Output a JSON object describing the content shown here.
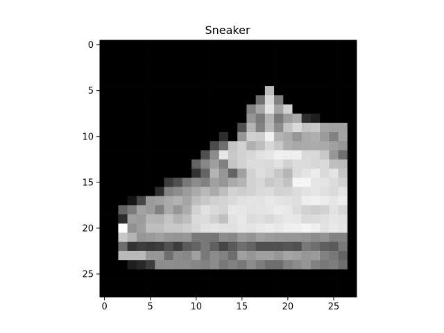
{
  "chart_data": {
    "type": "heatmap",
    "title": "Sneaker",
    "xlabel": "",
    "ylabel": "",
    "colormap": "gray",
    "value_range": [
      0,
      255
    ],
    "shape": [
      28,
      28
    ],
    "x_ticks": [
      0,
      5,
      10,
      15,
      20,
      25
    ],
    "y_ticks": [
      0,
      5,
      10,
      15,
      20,
      25
    ],
    "xlim": [
      -0.5,
      27.5
    ],
    "ylim": [
      27.5,
      -0.5
    ],
    "pixels": [
      [
        0,
        0,
        0,
        0,
        0,
        0,
        0,
        0,
        0,
        0,
        0,
        0,
        0,
        0,
        0,
        0,
        0,
        0,
        0,
        0,
        0,
        0,
        0,
        0,
        0,
        0,
        0,
        0
      ],
      [
        0,
        0,
        0,
        0,
        0,
        0,
        0,
        0,
        0,
        0,
        0,
        0,
        0,
        0,
        0,
        0,
        0,
        0,
        0,
        0,
        0,
        0,
        0,
        0,
        0,
        0,
        0,
        0
      ],
      [
        0,
        0,
        0,
        0,
        0,
        0,
        0,
        0,
        0,
        0,
        0,
        0,
        0,
        0,
        0,
        0,
        0,
        0,
        0,
        0,
        0,
        0,
        0,
        0,
        0,
        0,
        0,
        0
      ],
      [
        0,
        0,
        0,
        0,
        0,
        0,
        0,
        0,
        0,
        0,
        0,
        0,
        0,
        0,
        0,
        0,
        0,
        0,
        0,
        0,
        0,
        0,
        0,
        0,
        0,
        0,
        0,
        0
      ],
      [
        0,
        0,
        0,
        0,
        0,
        0,
        0,
        0,
        0,
        0,
        0,
        0,
        0,
        0,
        0,
        0,
        0,
        0,
        0,
        0,
        0,
        0,
        0,
        0,
        0,
        0,
        0,
        0
      ],
      [
        0,
        0,
        0,
        0,
        0,
        0,
        0,
        0,
        0,
        0,
        0,
        0,
        0,
        0,
        0,
        0,
        0,
        0,
        186,
        0,
        0,
        0,
        0,
        0,
        0,
        0,
        0,
        0
      ],
      [
        0,
        0,
        0,
        0,
        0,
        0,
        0,
        0,
        0,
        0,
        0,
        0,
        0,
        0,
        0,
        0,
        0,
        111,
        216,
        128,
        0,
        0,
        0,
        0,
        0,
        0,
        0,
        0
      ],
      [
        0,
        0,
        0,
        0,
        0,
        0,
        0,
        0,
        0,
        0,
        0,
        0,
        0,
        0,
        0,
        0,
        130,
        165,
        228,
        165,
        209,
        0,
        0,
        0,
        0,
        0,
        0,
        0
      ],
      [
        0,
        0,
        0,
        0,
        0,
        0,
        0,
        0,
        0,
        0,
        0,
        0,
        0,
        0,
        0,
        0,
        150,
        123,
        180,
        122,
        156,
        170,
        45,
        30,
        0,
        0,
        0,
        0
      ],
      [
        0,
        0,
        0,
        0,
        0,
        0,
        0,
        0,
        0,
        0,
        0,
        0,
        0,
        0,
        0,
        80,
        180,
        130,
        186,
        140,
        196,
        218,
        196,
        200,
        165,
        162,
        162,
        0
      ],
      [
        0,
        0,
        0,
        0,
        0,
        0,
        0,
        0,
        0,
        0,
        0,
        0,
        0,
        45,
        0,
        150,
        208,
        204,
        240,
        180,
        170,
        150,
        170,
        175,
        155,
        130,
        164,
        0
      ],
      [
        0,
        0,
        0,
        0,
        0,
        0,
        0,
        0,
        0,
        0,
        0,
        0,
        75,
        110,
        196,
        210,
        176,
        190,
        215,
        200,
        175,
        168,
        170,
        172,
        170,
        160,
        150,
        0
      ],
      [
        0,
        0,
        0,
        0,
        0,
        0,
        0,
        0,
        0,
        0,
        0,
        80,
        140,
        230,
        200,
        210,
        216,
        225,
        230,
        240,
        238,
        240,
        218,
        216,
        200,
        150,
        110,
        0
      ],
      [
        0,
        0,
        0,
        0,
        0,
        0,
        0,
        0,
        0,
        0,
        100,
        135,
        158,
        128,
        198,
        210,
        220,
        220,
        218,
        225,
        208,
        220,
        220,
        215,
        218,
        190,
        188,
        0
      ],
      [
        0,
        0,
        0,
        0,
        0,
        0,
        0,
        0,
        0,
        0,
        50,
        100,
        180,
        150,
        100,
        160,
        210,
        222,
        215,
        200,
        182,
        220,
        228,
        236,
        218,
        228,
        198,
        0
      ],
      [
        0,
        0,
        0,
        0,
        0,
        0,
        0,
        60,
        80,
        120,
        140,
        130,
        160,
        150,
        170,
        180,
        210,
        216,
        200,
        208,
        195,
        245,
        246,
        230,
        228,
        220,
        210,
        0
      ],
      [
        0,
        0,
        0,
        0,
        0,
        0,
        45,
        130,
        140,
        155,
        170,
        185,
        170,
        190,
        210,
        205,
        210,
        218,
        220,
        210,
        212,
        220,
        226,
        230,
        224,
        218,
        228,
        0
      ],
      [
        0,
        0,
        0,
        20,
        70,
        155,
        160,
        170,
        178,
        165,
        190,
        200,
        208,
        212,
        218,
        225,
        228,
        226,
        232,
        228,
        226,
        222,
        238,
        240,
        236,
        230,
        236,
        0
      ],
      [
        0,
        0,
        100,
        124,
        162,
        156,
        128,
        170,
        150,
        172,
        210,
        226,
        218,
        212,
        232,
        230,
        226,
        228,
        230,
        236,
        232,
        220,
        210,
        205,
        210,
        226,
        214,
        0
      ],
      [
        0,
        0,
        45,
        160,
        156,
        182,
        180,
        196,
        180,
        190,
        218,
        220,
        208,
        192,
        226,
        232,
        220,
        224,
        218,
        226,
        232,
        230,
        218,
        220,
        224,
        230,
        225,
        0
      ],
      [
        0,
        0,
        254,
        145,
        160,
        190,
        190,
        200,
        200,
        205,
        215,
        225,
        228,
        225,
        224,
        230,
        228,
        232,
        236,
        232,
        238,
        240,
        245,
        240,
        226,
        232,
        228,
        0
      ],
      [
        0,
        0,
        200,
        180,
        150,
        154,
        160,
        150,
        148,
        150,
        120,
        120,
        118,
        140,
        135,
        155,
        148,
        160,
        156,
        152,
        150,
        150,
        148,
        140,
        146,
        130,
        130,
        0
      ],
      [
        0,
        0,
        110,
        50,
        60,
        55,
        60,
        80,
        60,
        90,
        100,
        120,
        95,
        70,
        90,
        110,
        100,
        80,
        80,
        80,
        85,
        80,
        120,
        110,
        95,
        90,
        120,
        0
      ],
      [
        0,
        0,
        185,
        185,
        185,
        150,
        150,
        110,
        140,
        135,
        160,
        120,
        140,
        130,
        110,
        160,
        150,
        160,
        160,
        150,
        165,
        160,
        150,
        155,
        130,
        120,
        100,
        0
      ],
      [
        0,
        0,
        0,
        30,
        40,
        60,
        140,
        142,
        140,
        140,
        135,
        130,
        140,
        120,
        130,
        120,
        140,
        125,
        110,
        110,
        130,
        140,
        150,
        130,
        120,
        125,
        110,
        0
      ],
      [
        0,
        0,
        0,
        0,
        0,
        0,
        0,
        0,
        0,
        0,
        0,
        0,
        0,
        0,
        0,
        0,
        0,
        0,
        0,
        0,
        0,
        0,
        0,
        0,
        0,
        0,
        0,
        0
      ],
      [
        0,
        0,
        0,
        0,
        0,
        0,
        0,
        0,
        0,
        0,
        0,
        0,
        0,
        0,
        0,
        0,
        0,
        0,
        0,
        0,
        0,
        0,
        0,
        0,
        0,
        0,
        0,
        0
      ],
      [
        0,
        0,
        0,
        0,
        0,
        0,
        0,
        0,
        0,
        0,
        0,
        0,
        0,
        0,
        0,
        0,
        0,
        0,
        0,
        0,
        0,
        0,
        0,
        0,
        0,
        0,
        0,
        0
      ]
    ]
  }
}
